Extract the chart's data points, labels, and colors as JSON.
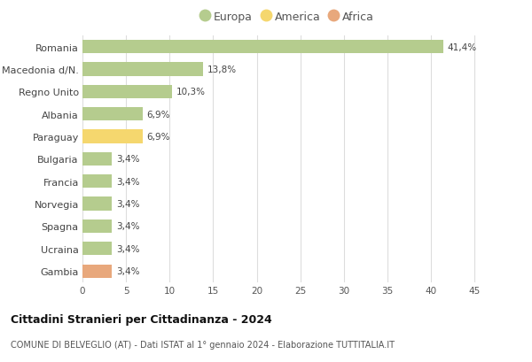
{
  "countries": [
    "Gambia",
    "Ucraina",
    "Spagna",
    "Norvegia",
    "Francia",
    "Bulgaria",
    "Paraguay",
    "Albania",
    "Regno Unito",
    "Macedonia d/N.",
    "Romania"
  ],
  "values": [
    3.4,
    3.4,
    3.4,
    3.4,
    3.4,
    3.4,
    6.9,
    6.9,
    10.3,
    13.8,
    41.4
  ],
  "labels": [
    "3,4%",
    "3,4%",
    "3,4%",
    "3,4%",
    "3,4%",
    "3,4%",
    "6,9%",
    "6,9%",
    "10,3%",
    "13,8%",
    "41,4%"
  ],
  "continents": [
    "Africa",
    "Europa",
    "Europa",
    "Europa",
    "Europa",
    "Europa",
    "America",
    "Europa",
    "Europa",
    "Europa",
    "Europa"
  ],
  "colors": {
    "Europa": "#b5cc8e",
    "America": "#f5d76e",
    "Africa": "#e8a87c"
  },
  "legend_items": [
    "Europa",
    "America",
    "Africa"
  ],
  "xlim": [
    0,
    47
  ],
  "xticks": [
    0,
    5,
    10,
    15,
    20,
    25,
    30,
    35,
    40,
    45
  ],
  "title": "Cittadini Stranieri per Cittadinanza - 2024",
  "subtitle": "COMUNE DI BELVEGLIO (AT) - Dati ISTAT al 1° gennaio 2024 - Elaborazione TUTTITALIA.IT",
  "bg_color": "#ffffff",
  "grid_color": "#dddddd",
  "bar_height": 0.6
}
